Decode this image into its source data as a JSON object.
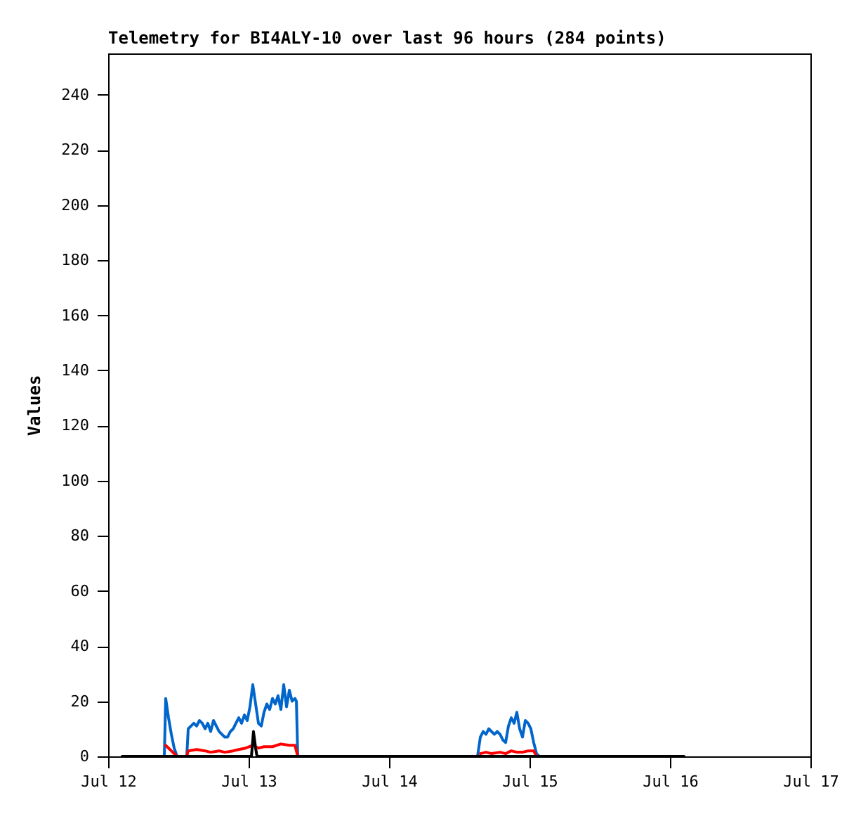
{
  "chart_data": {
    "type": "line",
    "title": "Telemetry for BI4ALY-10 over last 96 hours (284 points)",
    "ylabel": "Values",
    "xlim": [
      "--07-12",
      "--07-17"
    ],
    "xticks": [
      {
        "value": "--07-12",
        "label": "Jul 12"
      },
      {
        "value": "--07-13",
        "label": "Jul 13"
      },
      {
        "value": "--07-14",
        "label": "Jul 14"
      },
      {
        "value": "--07-15",
        "label": "Jul 15"
      },
      {
        "value": "--07-16",
        "label": "Jul 16"
      },
      {
        "value": "--07-17",
        "label": "Jul 17"
      }
    ],
    "ylim": [
      0,
      255
    ],
    "yticks": [
      0,
      20,
      40,
      60,
      80,
      100,
      120,
      140,
      160,
      180,
      200,
      220,
      240
    ],
    "grid": false,
    "marker": "none",
    "line_style": "solid",
    "series": [
      {
        "color": "#0066cc",
        "x": [
          "--07-12T09:36",
          "--07-12T09:50",
          "--07-12T10:19",
          "--07-12T10:48",
          "--07-12T11:17",
          "--07-12T11:46",
          "--07-12T13:26",
          "--07-12T13:41",
          "--07-12T14:10",
          "--07-12T14:38",
          "--07-12T15:07",
          "--07-12T15:36",
          "--07-12T16:05",
          "--07-12T16:34",
          "--07-12T17:02",
          "--07-12T17:31",
          "--07-12T18:00",
          "--07-12T18:29",
          "--07-12T18:58",
          "--07-12T19:26",
          "--07-12T19:55",
          "--07-12T20:24",
          "--07-12T20:53",
          "--07-12T21:22",
          "--07-12T21:50",
          "--07-12T22:19",
          "--07-12T22:48",
          "--07-12T23:17",
          "--07-12T23:46",
          "--07-13T00:14",
          "--07-13T00:43",
          "--07-13T01:12",
          "--07-13T01:41",
          "--07-13T02:10",
          "--07-13T02:38",
          "--07-13T03:07",
          "--07-13T03:36",
          "--07-13T04:05",
          "--07-13T04:34",
          "--07-13T05:02",
          "--07-13T05:31",
          "--07-13T06:00",
          "--07-13T06:29",
          "--07-13T06:58",
          "--07-13T07:26",
          "--07-13T07:55",
          "--07-13T08:10",
          "--07-13T08:24",
          "--07-14T03:00",
          "--07-14T15:07",
          "--07-14T15:36",
          "--07-14T16:05",
          "--07-14T16:34",
          "--07-14T17:02",
          "--07-14T17:31",
          "--07-14T18:00",
          "--07-14T18:29",
          "--07-14T18:58",
          "--07-14T19:26",
          "--07-14T19:55",
          "--07-14T20:24",
          "--07-14T20:53",
          "--07-14T21:22",
          "--07-14T21:50",
          "--07-14T22:19",
          "--07-14T22:48",
          "--07-14T23:17",
          "--07-14T23:46",
          "--07-15T00:14",
          "--07-15T00:43",
          "--07-15T01:12",
          "--07-15T01:41"
        ],
        "values": [
          0,
          21,
          14,
          8,
          3,
          0,
          0,
          10,
          11,
          12,
          11,
          13,
          12,
          10,
          12,
          9,
          13,
          11,
          9,
          8,
          7,
          7,
          9,
          10,
          12,
          14,
          12,
          15,
          13,
          18,
          26,
          19,
          12,
          11,
          16,
          19,
          17,
          21,
          19,
          22,
          17,
          26,
          18,
          24,
          20,
          21,
          20,
          0,
          null,
          0,
          7,
          9,
          8,
          10,
          9,
          8,
          9,
          8,
          6,
          5,
          11,
          14,
          12,
          16,
          10,
          7,
          13,
          12,
          10,
          5,
          1,
          0
        ]
      },
      {
        "color": "#ff0000",
        "x": [
          "--07-12T09:50",
          "--07-12T10:19",
          "--07-12T10:48",
          "--07-12T11:46",
          "--07-12T13:26",
          "--07-12T13:41",
          "--07-12T15:07",
          "--07-12T16:34",
          "--07-12T17:31",
          "--07-12T18:58",
          "--07-12T19:55",
          "--07-12T21:22",
          "--07-12T22:19",
          "--07-12T23:31",
          "--07-13T00:43",
          "--07-13T01:41",
          "--07-13T02:38",
          "--07-13T04:05",
          "--07-13T05:31",
          "--07-13T06:58",
          "--07-13T07:55",
          "--07-13T08:24",
          "--07-14T03:00",
          "--07-14T15:36",
          "--07-14T16:34",
          "--07-14T17:31",
          "--07-14T18:58",
          "--07-14T19:55",
          "--07-14T20:53",
          "--07-14T21:50",
          "--07-14T22:48",
          "--07-14T23:46",
          "--07-15T00:43",
          "--07-15T01:12"
        ],
        "values": [
          4,
          3,
          2,
          0,
          0,
          2,
          2.5,
          2,
          1.5,
          2,
          1.5,
          2,
          2.5,
          3,
          4,
          3,
          3.5,
          3.5,
          4.5,
          4,
          4,
          0,
          null,
          1,
          1.5,
          1,
          1.5,
          1,
          2,
          1.5,
          1.5,
          2,
          2,
          0
        ]
      },
      {
        "color": "#000000",
        "x": [
          "--07-12T02:24",
          "--07-13T00:29",
          "--07-13T00:50",
          "--07-13T01:12",
          "--07-13T01:26",
          "--07-16T02:24"
        ],
        "values": [
          0,
          0,
          9,
          3,
          0,
          0
        ]
      }
    ]
  }
}
